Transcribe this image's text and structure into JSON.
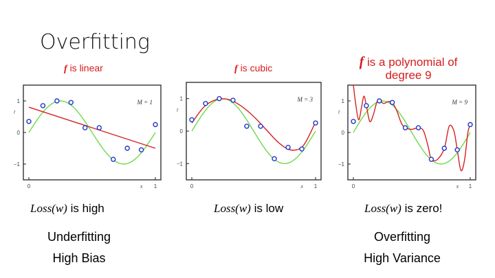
{
  "slide": {
    "title": "Overfitting"
  },
  "colors": {
    "fit": "#d62020",
    "truth": "#6fd84a",
    "point": "#1f36c8",
    "title": "#d81b1b"
  },
  "panels": [
    {
      "title_symbol": "f",
      "title_rest": "is linear",
      "loss_expr": "Loss(w)",
      "loss_rest": "is high"
    },
    {
      "title_symbol": "f",
      "title_rest": "is cubic",
      "loss_expr": "Loss(w)",
      "loss_rest": "is low"
    },
    {
      "title_symbol": "f",
      "title_rest": "is a polynomial of degree 9",
      "loss_expr": "Loss(w)",
      "loss_rest": "is zero!"
    }
  ],
  "notes": {
    "left": {
      "line1": "Underfitting",
      "line2": "High Bias"
    },
    "right": {
      "line1": "Overfitting",
      "line2": "High Variance"
    }
  },
  "chart_data": [
    {
      "type": "line",
      "model_label": "M = 1",
      "xlabel": "x",
      "ylabel": "t",
      "xlim": [
        0,
        1
      ],
      "ylim": [
        -1.5,
        1.5
      ],
      "x_ticks": [
        "0",
        "1"
      ],
      "y_ticks": [
        "1",
        "0",
        "−1"
      ],
      "points": [
        [
          0.0,
          0.35
        ],
        [
          0.111,
          0.85
        ],
        [
          0.222,
          1.0
        ],
        [
          0.333,
          0.95
        ],
        [
          0.444,
          0.15
        ],
        [
          0.556,
          0.15
        ],
        [
          0.667,
          -0.85
        ],
        [
          0.778,
          -0.5
        ],
        [
          0.889,
          -0.55
        ],
        [
          1.0,
          0.25
        ]
      ],
      "fit_points": [
        [
          0.0,
          0.8
        ],
        [
          1.0,
          -0.5
        ]
      ]
    },
    {
      "type": "line",
      "model_label": "M = 3",
      "xlabel": "x",
      "ylabel": "t",
      "xlim": [
        0,
        1
      ],
      "ylim": [
        -1.5,
        1.5
      ],
      "x_ticks": [
        "0",
        "1"
      ],
      "y_ticks": [
        "1",
        "0",
        "−1"
      ],
      "points": [
        [
          0.0,
          0.35
        ],
        [
          0.111,
          0.85
        ],
        [
          0.222,
          1.0
        ],
        [
          0.333,
          0.95
        ],
        [
          0.444,
          0.15
        ],
        [
          0.556,
          0.15
        ],
        [
          0.667,
          -0.85
        ],
        [
          0.778,
          -0.5
        ],
        [
          0.889,
          -0.55
        ],
        [
          1.0,
          0.25
        ]
      ],
      "fit_points": [
        [
          0.0,
          0.25
        ],
        [
          0.1,
          0.75
        ],
        [
          0.2,
          0.97
        ],
        [
          0.3,
          0.97
        ],
        [
          0.4,
          0.77
        ],
        [
          0.5,
          0.45
        ],
        [
          0.6,
          0.05
        ],
        [
          0.7,
          -0.35
        ],
        [
          0.8,
          -0.58
        ],
        [
          0.9,
          -0.45
        ],
        [
          1.0,
          0.28
        ]
      ]
    },
    {
      "type": "line",
      "model_label": "M = 9",
      "xlabel": "x",
      "ylabel": "t",
      "xlim": [
        0,
        1
      ],
      "ylim": [
        -1.5,
        1.5
      ],
      "x_ticks": [
        "0",
        "1"
      ],
      "y_ticks": [
        "1",
        "0",
        "−1"
      ],
      "points": [
        [
          0.0,
          0.35
        ],
        [
          0.111,
          0.85
        ],
        [
          0.222,
          1.0
        ],
        [
          0.333,
          0.95
        ],
        [
          0.444,
          0.15
        ],
        [
          0.556,
          0.15
        ],
        [
          0.667,
          -0.85
        ],
        [
          0.778,
          -0.5
        ],
        [
          0.889,
          -0.55
        ],
        [
          1.0,
          0.25
        ]
      ],
      "fit_points": [
        [
          0.0,
          1.5
        ],
        [
          0.02,
          0.9
        ],
        [
          0.045,
          0.4
        ],
        [
          0.07,
          0.8
        ],
        [
          0.09,
          1.15
        ],
        [
          0.111,
          0.85
        ],
        [
          0.14,
          0.35
        ],
        [
          0.17,
          0.55
        ],
        [
          0.2,
          0.95
        ],
        [
          0.222,
          1.0
        ],
        [
          0.26,
          0.92
        ],
        [
          0.3,
          0.98
        ],
        [
          0.333,
          0.95
        ],
        [
          0.37,
          0.7
        ],
        [
          0.41,
          0.3
        ],
        [
          0.444,
          0.15
        ],
        [
          0.5,
          0.1
        ],
        [
          0.556,
          0.15
        ],
        [
          0.6,
          0.05
        ],
        [
          0.64,
          -0.45
        ],
        [
          0.667,
          -0.85
        ],
        [
          0.72,
          -0.85
        ],
        [
          0.778,
          -0.5
        ],
        [
          0.82,
          0.2
        ],
        [
          0.86,
          0.05
        ],
        [
          0.889,
          -0.55
        ],
        [
          0.92,
          -1.2
        ],
        [
          0.95,
          -0.9
        ],
        [
          0.98,
          0.0
        ],
        [
          1.0,
          0.25
        ]
      ]
    }
  ]
}
